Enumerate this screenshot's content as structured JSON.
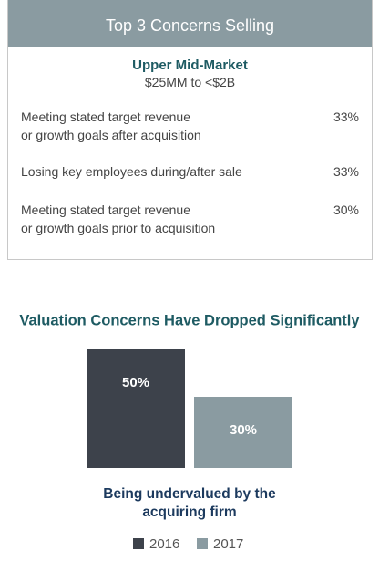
{
  "panel": {
    "title": "Top 3 Concerns Selling",
    "subtitle": "Upper Mid-Market",
    "range": "$25MM to <$2B",
    "items": [
      {
        "lines": [
          "Meeting stated target revenue",
          "or growth goals after acquisition"
        ],
        "percent": "33%"
      },
      {
        "lines": [
          "Losing key employees during/after sale"
        ],
        "percent": "33%"
      },
      {
        "lines": [
          "Meeting stated target revenue",
          "or growth goals prior to acquisition"
        ],
        "percent": "30%"
      }
    ]
  },
  "chart_data": {
    "type": "bar",
    "title": "Valuation Concerns Have Dropped Significantly",
    "categories": [
      "Being undervalued by the acquiring firm"
    ],
    "series": [
      {
        "name": "2016",
        "color": "#3d424b",
        "values": [
          50
        ],
        "value_labels": [
          "50%"
        ]
      },
      {
        "name": "2017",
        "color": "#8a9ba1",
        "values": [
          30
        ],
        "value_labels": [
          "30%"
        ]
      }
    ]
  }
}
